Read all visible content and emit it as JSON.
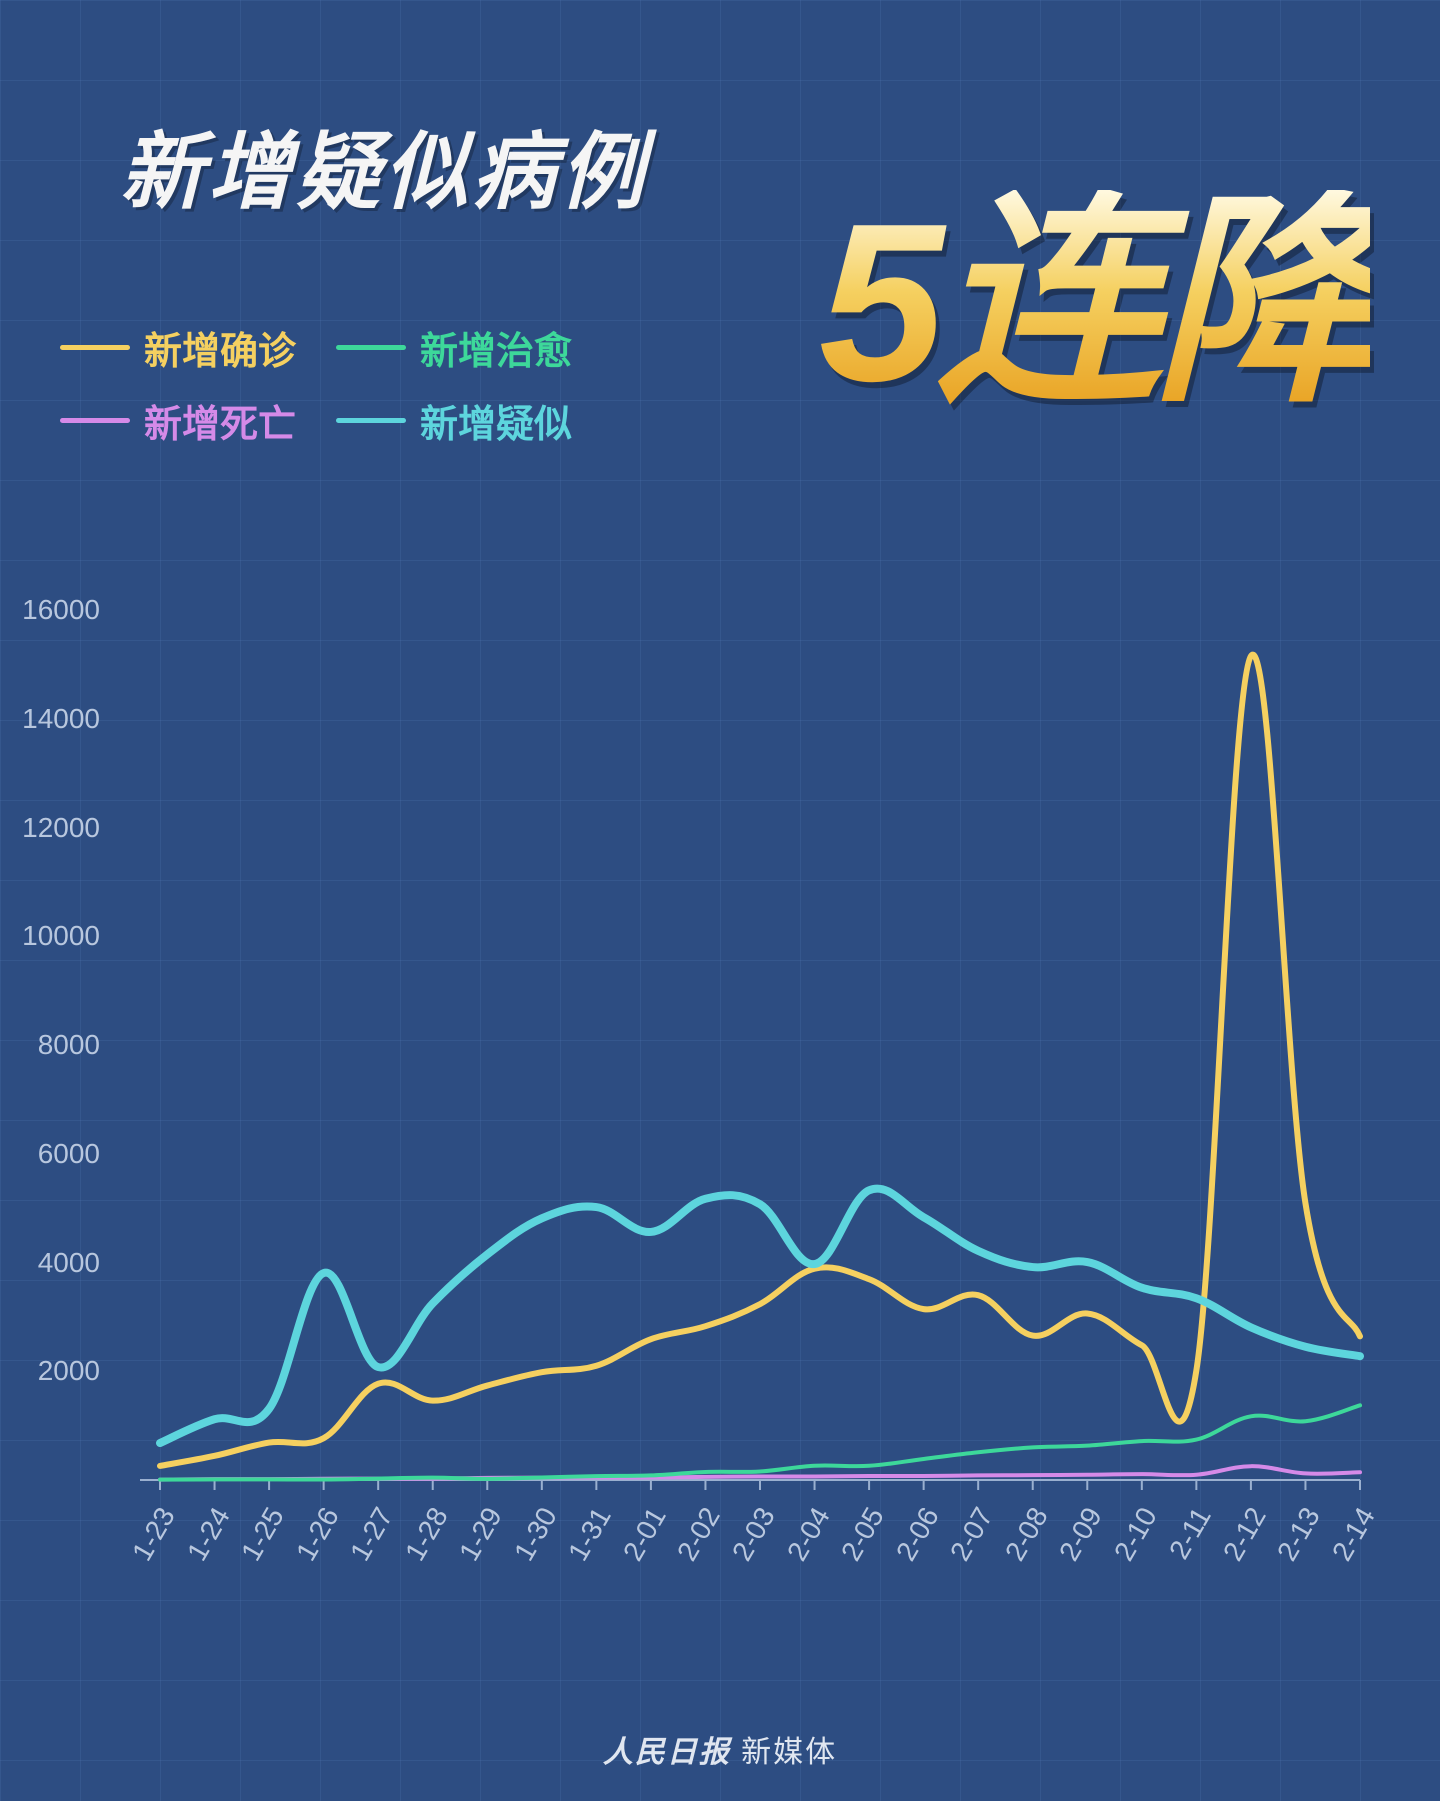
{
  "title": "新增疑似病例",
  "highlight": "5连降",
  "footer_bold": "人民日报",
  "footer_light": " 新媒体",
  "chart": {
    "type": "line",
    "background_color": "#2d4d82",
    "grid_color": "#4a6a9e",
    "ylim": [
      0,
      16000
    ],
    "ytick_step": 2000,
    "ytick_labels": [
      "2000",
      "4000",
      "6000",
      "8000",
      "10000",
      "12000",
      "14000",
      "16000"
    ],
    "x_labels": [
      "1-23",
      "1-24",
      "1-25",
      "1-26",
      "1-27",
      "1-28",
      "1-29",
      "1-30",
      "1-31",
      "2-01",
      "2-02",
      "2-03",
      "2-04",
      "2-05",
      "2-06",
      "2-07",
      "2-08",
      "2-09",
      "2-10",
      "2-11",
      "2-12",
      "2-13",
      "2-14"
    ],
    "tick_label_color": "#b8c7de",
    "tick_label_fontsize": 28,
    "line_width_main": 6,
    "line_width_thin": 4,
    "legend": [
      {
        "label": "新增确诊",
        "color": "#f5d060"
      },
      {
        "label": "新增治愈",
        "color": "#3dd89a"
      },
      {
        "label": "新增死亡",
        "color": "#d58ae8"
      },
      {
        "label": "新增疑似",
        "color": "#5dd5dd"
      }
    ],
    "series": {
      "confirmed": {
        "label": "新增确诊",
        "color": "#f5d060",
        "values": [
          259,
          444,
          688,
          769,
          1771,
          1459,
          1737,
          1982,
          2102,
          2590,
          2829,
          3235,
          3887,
          3694,
          3143,
          3399,
          2656,
          3062,
          2478,
          2015,
          15152,
          5090,
          2641
        ]
      },
      "recovered": {
        "label": "新增治愈",
        "color": "#3dd89a",
        "values": [
          6,
          11,
          11,
          9,
          26,
          43,
          21,
          47,
          72,
          85,
          147,
          157,
          262,
          261,
          387,
          510,
          600,
          632,
          716,
          744,
          1171,
          1081,
          1373
        ]
      },
      "deaths": {
        "label": "新增死亡",
        "color": "#d58ae8",
        "values": [
          8,
          16,
          15,
          24,
          26,
          26,
          38,
          43,
          46,
          45,
          57,
          64,
          65,
          73,
          73,
          86,
          89,
          97,
          108,
          97,
          254,
          121,
          143
        ]
      },
      "suspected": {
        "label": "新增疑似",
        "color": "#5dd5dd",
        "values": [
          680,
          1118,
          1309,
          3806,
          2077,
          3248,
          4148,
          4812,
          5019,
          4562,
          5173,
          5072,
          3971,
          5328,
          4833,
          4214,
          3916,
          4008,
          3536,
          3342,
          2807,
          2450,
          2277
        ]
      }
    }
  }
}
